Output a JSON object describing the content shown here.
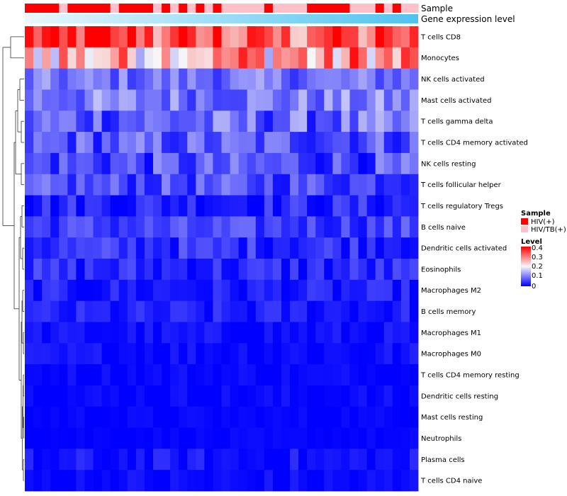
{
  "chart_data": {
    "type": "heatmap",
    "annotation_tracks": [
      "Sample",
      "Gene expression level"
    ],
    "rows": [
      "T cells CD8",
      "Monocytes",
      "NK cells activated",
      "Mast cells activated",
      "T cells gamma delta",
      "T cells CD4 memory activated",
      "NK cells resting",
      "T cells follicular helper",
      "T cells regulatory  Tregs",
      "B cells naive",
      "Dendritic cells activated",
      "Eosinophils",
      "Macrophages M2",
      "B cells memory",
      "Macrophages M1",
      "Macrophages M0",
      "T cells CD4 memory resting",
      "Dendritic cells resting",
      "Mast cells resting",
      "Neutrophils",
      "Plasma cells",
      "T cells CD4 naive"
    ],
    "n_columns": 46,
    "sample_groups": "HHHHPHHHHHPHHHHPHPHPHPHPPPPPHPPPPHHHHHPPPHPHPP",
    "row_profiles": [
      {
        "base": 0.3,
        "amp": 0.1
      },
      {
        "base": 0.25,
        "amp": 0.12
      },
      {
        "base": 0.09,
        "amp": 0.05
      },
      {
        "base": 0.1,
        "amp": 0.06
      },
      {
        "base": 0.08,
        "amp": 0.07
      },
      {
        "base": 0.07,
        "amp": 0.06
      },
      {
        "base": 0.06,
        "amp": 0.06
      },
      {
        "base": 0.06,
        "amp": 0.05
      },
      {
        "base": 0.03,
        "amp": 0.04
      },
      {
        "base": 0.05,
        "amp": 0.04
      },
      {
        "base": 0.04,
        "amp": 0.04
      },
      {
        "base": 0.03,
        "amp": 0.04
      },
      {
        "base": 0.02,
        "amp": 0.03
      },
      {
        "base": 0.02,
        "amp": 0.03
      },
      {
        "base": 0.01,
        "amp": 0.02
      },
      {
        "base": 0.01,
        "amp": 0.02
      },
      {
        "base": 0.005,
        "amp": 0.015
      },
      {
        "base": 0.005,
        "amp": 0.015
      },
      {
        "base": 0.003,
        "amp": 0.01
      },
      {
        "base": 0.002,
        "amp": 0.008
      },
      {
        "base": 0.01,
        "amp": 0.03
      },
      {
        "base": 0.005,
        "amp": 0.02
      }
    ],
    "legend": {
      "sample_title": "Sample",
      "sample_entries": [
        {
          "label": "HIV(+)",
          "color": "#FF0000"
        },
        {
          "label": "HIV/TB(+)",
          "color": "#FFC0CB"
        }
      ],
      "level_title": "Level",
      "level_ticks": [
        "0.4",
        "0.3",
        "0.2",
        "0.1",
        "0"
      ],
      "color_low": "#0000FF",
      "color_mid": "#F7F7F7",
      "color_high": "#FF0000",
      "range": [
        0,
        0.4
      ]
    },
    "gene_expression_gradient": [
      "#EAF7FD",
      "#4FC3F0"
    ]
  }
}
